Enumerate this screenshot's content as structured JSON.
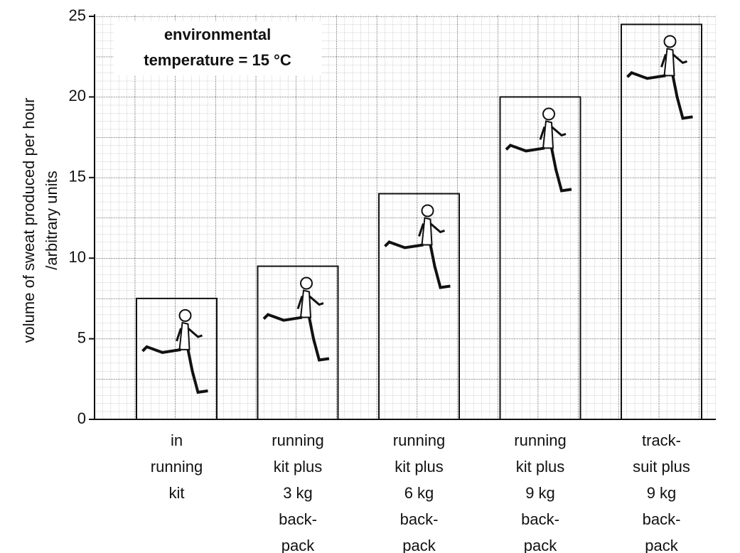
{
  "chart_data": {
    "type": "bar",
    "y_label": [
      "volume of sweat produced per hour",
      "/arbitrary units"
    ],
    "annotation": [
      "environmental",
      "temperature = 15 °C"
    ],
    "categories": [
      [
        "in",
        "running",
        "kit"
      ],
      [
        "running",
        "kit plus",
        "3 kg",
        "back-",
        "pack"
      ],
      [
        "running",
        "kit plus",
        "6 kg",
        "back-",
        "pack"
      ],
      [
        "running",
        "kit plus",
        "9 kg",
        "back-",
        "pack"
      ],
      [
        "track-",
        "suit plus",
        "9 kg",
        "back-",
        "pack"
      ]
    ],
    "values": [
      7.5,
      9.5,
      14,
      20,
      24.5
    ],
    "color": "#ffffff",
    "ylim": [
      0,
      25
    ],
    "yticks": [
      0,
      5,
      10,
      15,
      20,
      25
    ],
    "grid": true
  }
}
